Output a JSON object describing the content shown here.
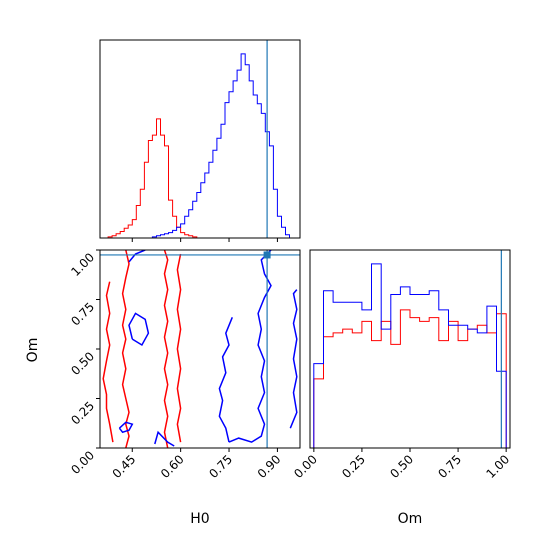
{
  "chart_data": {
    "type": "corner",
    "parameters": [
      "H0",
      "Om"
    ],
    "truth": {
      "H0": 0.868,
      "Om": 0.975
    },
    "colors": {
      "run_a": "#ff0000",
      "run_b": "#0000ff",
      "truth": "#1f77b4"
    },
    "hist_H0": {
      "xlim": [
        0.35,
        0.97
      ],
      "bin_edges": [
        0.35,
        0.3625,
        0.375,
        0.3875,
        0.4,
        0.4125,
        0.425,
        0.4375,
        0.45,
        0.4625,
        0.475,
        0.4875,
        0.5,
        0.5125,
        0.525,
        0.5375,
        0.55,
        0.5625,
        0.575,
        0.5875,
        0.6,
        0.6125,
        0.625,
        0.6375,
        0.65,
        0.6625,
        0.675,
        0.6875,
        0.7,
        0.7125,
        0.725,
        0.7375,
        0.75,
        0.7625,
        0.775,
        0.7875,
        0.8,
        0.8125,
        0.825,
        0.8375,
        0.85,
        0.8625,
        0.875,
        0.8875,
        0.9,
        0.9125,
        0.925,
        0.9375,
        0.95,
        0.9625
      ],
      "series": [
        {
          "key": "run_a",
          "counts": [
            0,
            0,
            1,
            2,
            4,
            6,
            9,
            12,
            17,
            30,
            45,
            70,
            90,
            95,
            110,
            95,
            85,
            35,
            20,
            10,
            5,
            3,
            2,
            1,
            0,
            0,
            0,
            0,
            0,
            0,
            0,
            0,
            0,
            0,
            0,
            0,
            0,
            0,
            0,
            0,
            0,
            0,
            0,
            0,
            0,
            0,
            0,
            0,
            0
          ]
        },
        {
          "key": "run_b",
          "counts": [
            0,
            0,
            0,
            0,
            0,
            0,
            0,
            0,
            0,
            0,
            0,
            0,
            0,
            1,
            2,
            3,
            4,
            5,
            7,
            10,
            13,
            20,
            26,
            34,
            42,
            51,
            60,
            70,
            81,
            92,
            105,
            125,
            135,
            145,
            155,
            170,
            160,
            145,
            132,
            124,
            115,
            98,
            85,
            45,
            20,
            10,
            3,
            0,
            0
          ]
        }
      ]
    },
    "hist_Om": {
      "xlim": [
        -0.02,
        1.02
      ],
      "bin_edges": [
        0.0,
        0.05,
        0.1,
        0.15,
        0.2,
        0.25,
        0.3,
        0.35,
        0.4,
        0.45,
        0.5,
        0.55,
        0.6,
        0.65,
        0.7,
        0.75,
        0.8,
        0.85,
        0.9,
        0.95,
        1.0
      ],
      "series": [
        {
          "key": "run_a",
          "counts": [
            18,
            29,
            30,
            31,
            30,
            33,
            28,
            33,
            27,
            36,
            34,
            33,
            34,
            28,
            33,
            28,
            31,
            32,
            30,
            35
          ]
        },
        {
          "key": "run_b",
          "counts": [
            22,
            41,
            38,
            38,
            38,
            36,
            48,
            31,
            40,
            42,
            40,
            40,
            41,
            36,
            32,
            32,
            31,
            30,
            37,
            20
          ]
        }
      ]
    },
    "contour_ticks_x": [
      0.45,
      0.6,
      0.75,
      0.9
    ],
    "ticks_Om": [
      0.0,
      0.25,
      0.5,
      0.75,
      1.0
    ],
    "tick_labels_x": [
      "0.45",
      "0.60",
      "0.75",
      "0.90"
    ],
    "tick_labels_Om": [
      "0.00",
      "0.25",
      "0.50",
      "0.75",
      "1.00"
    ],
    "xlabel_contour": "H0",
    "ylabel_contour": "Om",
    "xlabel_om": "Om",
    "contours": {
      "xlim": [
        0.35,
        0.97
      ],
      "ylim": [
        0.0,
        1.0
      ],
      "run_a": [
        [
          [
            0.43,
            0.0
          ],
          [
            0.44,
            0.06
          ],
          [
            0.43,
            0.12
          ],
          [
            0.44,
            0.18
          ],
          [
            0.43,
            0.25
          ],
          [
            0.42,
            0.32
          ],
          [
            0.43,
            0.4
          ],
          [
            0.42,
            0.48
          ],
          [
            0.43,
            0.55
          ],
          [
            0.42,
            0.62
          ],
          [
            0.43,
            0.7
          ],
          [
            0.42,
            0.78
          ],
          [
            0.43,
            0.86
          ],
          [
            0.44,
            0.93
          ],
          [
            0.43,
            1.0
          ]
        ],
        [
          [
            0.56,
            0.0
          ],
          [
            0.55,
            0.08
          ],
          [
            0.56,
            0.16
          ],
          [
            0.55,
            0.24
          ],
          [
            0.56,
            0.32
          ],
          [
            0.55,
            0.4
          ],
          [
            0.56,
            0.48
          ],
          [
            0.55,
            0.56
          ],
          [
            0.56,
            0.64
          ],
          [
            0.55,
            0.72
          ],
          [
            0.56,
            0.8
          ],
          [
            0.55,
            0.88
          ],
          [
            0.56,
            0.95
          ],
          [
            0.55,
            1.0
          ]
        ],
        [
          [
            0.39,
            0.03
          ],
          [
            0.38,
            0.12
          ],
          [
            0.37,
            0.2
          ],
          [
            0.37,
            0.27
          ],
          [
            0.36,
            0.35
          ],
          [
            0.37,
            0.44
          ],
          [
            0.38,
            0.52
          ],
          [
            0.37,
            0.6
          ],
          [
            0.38,
            0.68
          ],
          [
            0.37,
            0.77
          ],
          [
            0.38,
            0.84
          ]
        ],
        [
          [
            0.6,
            0.03
          ],
          [
            0.59,
            0.12
          ],
          [
            0.6,
            0.2
          ],
          [
            0.59,
            0.3
          ],
          [
            0.6,
            0.4
          ],
          [
            0.59,
            0.5
          ],
          [
            0.6,
            0.6
          ],
          [
            0.59,
            0.7
          ],
          [
            0.6,
            0.8
          ],
          [
            0.59,
            0.9
          ],
          [
            0.6,
            0.98
          ]
        ]
      ],
      "run_b": [
        [
          [
            0.41,
            0.1
          ],
          [
            0.43,
            0.13
          ],
          [
            0.45,
            0.12
          ],
          [
            0.44,
            0.09
          ],
          [
            0.42,
            0.08
          ],
          [
            0.41,
            0.1
          ]
        ],
        [
          [
            0.45,
            0.55
          ],
          [
            0.48,
            0.52
          ],
          [
            0.5,
            0.58
          ],
          [
            0.49,
            0.65
          ],
          [
            0.46,
            0.68
          ],
          [
            0.44,
            0.62
          ],
          [
            0.45,
            0.55
          ]
        ],
        [
          [
            0.44,
            0.94
          ],
          [
            0.46,
            0.98
          ],
          [
            0.49,
            1.0
          ]
        ],
        [
          [
            0.52,
            0.02
          ],
          [
            0.53,
            0.08
          ],
          [
            0.56,
            0.03
          ],
          [
            0.58,
            0.01
          ]
        ],
        [
          [
            0.75,
            0.03
          ],
          [
            0.78,
            0.05
          ],
          [
            0.82,
            0.03
          ],
          [
            0.85,
            0.06
          ],
          [
            0.86,
            0.12
          ],
          [
            0.84,
            0.2
          ],
          [
            0.86,
            0.28
          ],
          [
            0.85,
            0.36
          ],
          [
            0.86,
            0.44
          ],
          [
            0.84,
            0.52
          ],
          [
            0.85,
            0.6
          ],
          [
            0.84,
            0.68
          ],
          [
            0.86,
            0.76
          ],
          [
            0.88,
            0.82
          ],
          [
            0.86,
            0.88
          ],
          [
            0.85,
            0.95
          ],
          [
            0.88,
            1.0
          ]
        ],
        [
          [
            0.75,
            0.03
          ],
          [
            0.74,
            0.1
          ],
          [
            0.72,
            0.16
          ],
          [
            0.73,
            0.24
          ],
          [
            0.72,
            0.3
          ],
          [
            0.74,
            0.38
          ],
          [
            0.73,
            0.46
          ],
          [
            0.75,
            0.52
          ],
          [
            0.74,
            0.58
          ],
          [
            0.76,
            0.66
          ]
        ],
        [
          [
            0.94,
            0.1
          ],
          [
            0.96,
            0.18
          ],
          [
            0.95,
            0.28
          ],
          [
            0.96,
            0.36
          ],
          [
            0.95,
            0.45
          ],
          [
            0.96,
            0.55
          ],
          [
            0.95,
            0.63
          ],
          [
            0.96,
            0.7
          ],
          [
            0.95,
            0.78
          ],
          [
            0.96,
            0.8
          ]
        ]
      ]
    }
  }
}
